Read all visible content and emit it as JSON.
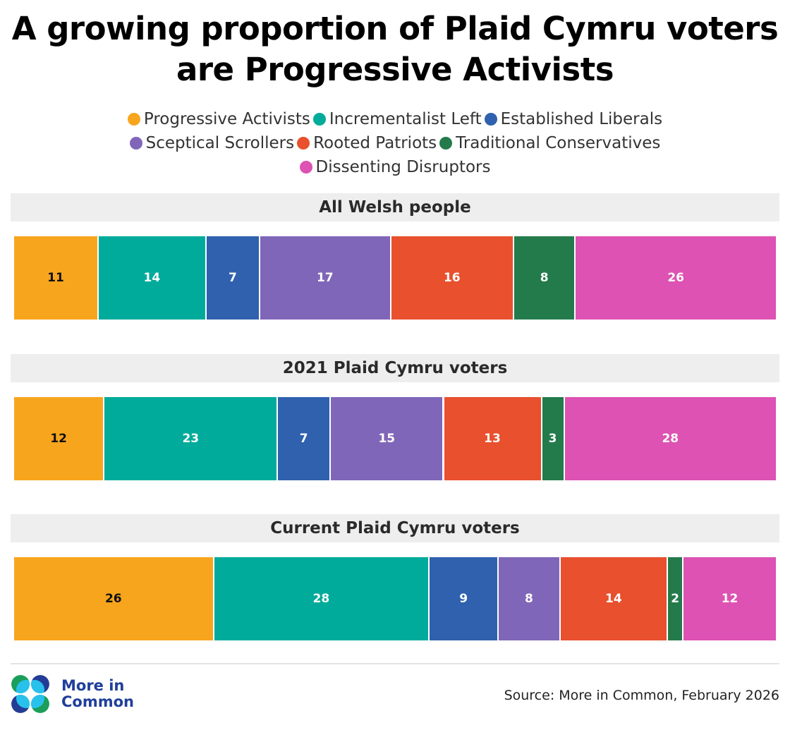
{
  "chart_data": {
    "type": "bar",
    "subtype": "100% stacked horizontal bar",
    "title": "A growing proportion of Plaid Cymru voters are Progressive Activists",
    "title_lines": [
      "A growing proportion of Plaid Cymru voters",
      "are Progressive Activists"
    ],
    "legend_placement": "top",
    "xlim": [
      0,
      100
    ],
    "categories": [
      "All Welsh people",
      "2021 Plaid Cymru voters",
      "Current Plaid Cymru voters"
    ],
    "series": [
      {
        "name": "Progressive Activists",
        "color": "#f8a51e",
        "label_color": "#111111",
        "values": [
          11,
          12,
          26
        ]
      },
      {
        "name": "Incrementalist Left",
        "color": "#00ab9b",
        "label_color": "#ffffff",
        "values": [
          14,
          23,
          28
        ]
      },
      {
        "name": "Established Liberals",
        "color": "#2f61ae",
        "label_color": "#ffffff",
        "values": [
          7,
          7,
          9
        ]
      },
      {
        "name": "Sceptical Scrollers",
        "color": "#8066b9",
        "label_color": "#ffffff",
        "values": [
          17,
          15,
          8
        ]
      },
      {
        "name": "Rooted Patriots",
        "color": "#e8502e",
        "label_color": "#ffffff",
        "values": [
          16,
          13,
          14
        ]
      },
      {
        "name": "Traditional Conservatives",
        "color": "#237b4b",
        "label_color": "#ffffff",
        "values": [
          8,
          3,
          2
        ]
      },
      {
        "name": "Dissenting Disruptors",
        "color": "#dd52b2",
        "label_color": "#ffffff",
        "values": [
          26,
          28,
          12
        ]
      }
    ]
  },
  "legend_rows": [
    [
      0,
      1,
      2
    ],
    [
      3,
      4,
      5
    ],
    [
      6
    ]
  ],
  "footer": {
    "logo_text_line1": "More in",
    "logo_text_line2": "Common",
    "source": "Source: More in Common, February 2026"
  },
  "logo_colors": {
    "green": "#1b9e5a",
    "cyan": "#27c1ec",
    "navy": "#233d96"
  }
}
